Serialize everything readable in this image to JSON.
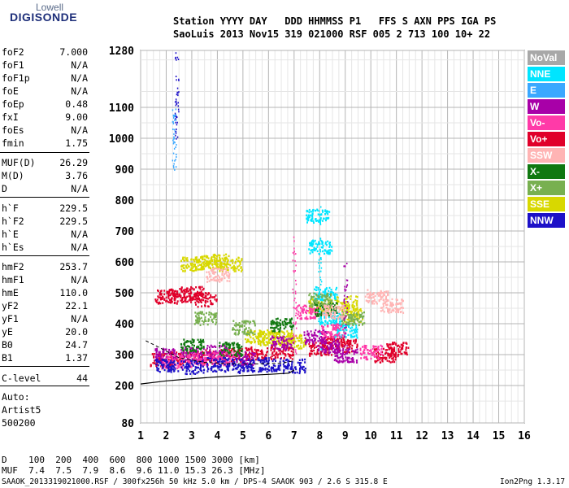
{
  "logo": {
    "line1": "Lowell",
    "line2": "DIGISONDE"
  },
  "header": {
    "line1": "Station YYYY DAY   DDD HHMMSS P1   FFS S AXN PPS IGA PS",
    "line2": "SaoLuis 2013 Nov15 319 021000 RSF 005 2 713 100 10+ 22"
  },
  "params": [
    {
      "k": "foF2",
      "v": "7.000"
    },
    {
      "k": "foF1",
      "v": "N/A"
    },
    {
      "k": "foF1p",
      "v": "N/A"
    },
    {
      "k": "foE",
      "v": "N/A"
    },
    {
      "k": "foEp",
      "v": "0.48"
    },
    {
      "k": "fxI",
      "v": "9.00"
    },
    {
      "k": "foEs",
      "v": "N/A"
    },
    {
      "k": "fmin",
      "v": "1.75"
    },
    {
      "k": "MUF(D)",
      "v": "26.29"
    },
    {
      "k": "M(D)",
      "v": "3.76"
    },
    {
      "k": "D",
      "v": "N/A"
    },
    {
      "k": "h`F",
      "v": "229.5"
    },
    {
      "k": "h`F2",
      "v": "229.5"
    },
    {
      "k": "h`E",
      "v": "N/A"
    },
    {
      "k": "h`Es",
      "v": "N/A"
    },
    {
      "k": "hmF2",
      "v": "253.7"
    },
    {
      "k": "hmF1",
      "v": "N/A"
    },
    {
      "k": "hmE",
      "v": "110.0"
    },
    {
      "k": "yF2",
      "v": "22.1"
    },
    {
      "k": "yF1",
      "v": "N/A"
    },
    {
      "k": "yE",
      "v": "20.0"
    },
    {
      "k": "B0",
      "v": "24.7"
    },
    {
      "k": "B1",
      "v": "1.37"
    },
    {
      "k": "C-level",
      "v": "44"
    }
  ],
  "auto": {
    "l1": "Auto:",
    "l2": "Artist5",
    "l3": "500200"
  },
  "legend": [
    {
      "label": "NoVal",
      "color": "#a8a8a8"
    },
    {
      "label": "NNE",
      "color": "#00e5ff"
    },
    {
      "label": "E",
      "color": "#3aa8ff"
    },
    {
      "label": "W",
      "color": "#a800a8"
    },
    {
      "label": "Vo-",
      "color": "#ff3aa8"
    },
    {
      "label": "Vo+",
      "color": "#e0002a"
    },
    {
      "label": "SSW",
      "color": "#ffb4b4"
    },
    {
      "label": "X-",
      "color": "#107810"
    },
    {
      "label": "X+",
      "color": "#78b050"
    },
    {
      "label": "SSE",
      "color": "#d8d800"
    },
    {
      "label": "NNW",
      "color": "#1c10c8"
    }
  ],
  "chart_data": {
    "type": "scatter",
    "xlabel": "",
    "ylabel": "",
    "xlim": [
      1,
      16
    ],
    "ylim_note": "height axis, piecewise scale",
    "x_ticks": [
      "1",
      "2",
      "3",
      "4",
      "5",
      "6",
      "7",
      "8",
      "9",
      "10",
      "11",
      "12",
      "13",
      "14",
      "15",
      "16"
    ],
    "y_ticks": [
      "80",
      "200",
      "300",
      "400",
      "500",
      "600",
      "700",
      "800",
      "900",
      "1000",
      "1100",
      "1280"
    ],
    "grid": true,
    "series": [
      {
        "name": "SSE",
        "values": [
          [
            3.0,
            595
          ],
          [
            3.5,
            600
          ],
          [
            4.0,
            605
          ],
          [
            4.5,
            595
          ],
          [
            5.5,
            360
          ],
          [
            6.0,
            355
          ],
          [
            6.5,
            360
          ],
          [
            7.0,
            345
          ],
          [
            8.0,
            460
          ],
          [
            9.0,
            470
          ],
          [
            9.2,
            430
          ]
        ]
      },
      {
        "name": "Vo+",
        "values": [
          [
            2.0,
            490
          ],
          [
            2.5,
            495
          ],
          [
            3.0,
            500
          ],
          [
            3.5,
            480
          ],
          [
            1.8,
            285
          ],
          [
            2.5,
            290
          ],
          [
            3.5,
            295
          ],
          [
            4.5,
            300
          ],
          [
            5.5,
            305
          ],
          [
            6.5,
            310
          ],
          [
            8.0,
            320
          ],
          [
            8.5,
            340
          ],
          [
            9.0,
            330
          ],
          [
            10.5,
            300
          ],
          [
            11.0,
            320
          ]
        ]
      },
      {
        "name": "W",
        "values": [
          [
            2.0,
            300
          ],
          [
            3.0,
            305
          ],
          [
            4.0,
            310
          ],
          [
            5.0,
            290
          ],
          [
            6.5,
            340
          ],
          [
            7.8,
            360
          ],
          [
            8.3,
            330
          ],
          [
            9.0,
            300
          ]
        ]
      },
      {
        "name": "NNE",
        "values": [
          [
            7.9,
            750
          ],
          [
            8.0,
            650
          ],
          [
            8.2,
            500
          ],
          [
            8.4,
            420
          ],
          [
            9.0,
            380
          ]
        ]
      },
      {
        "name": "Vo-",
        "values": [
          [
            2.2,
            280
          ],
          [
            3.2,
            285
          ],
          [
            4.2,
            290
          ],
          [
            7.5,
            440
          ],
          [
            8.5,
            380
          ],
          [
            10.0,
            310
          ]
        ]
      },
      {
        "name": "X-",
        "values": [
          [
            3.0,
            330
          ],
          [
            4.5,
            320
          ],
          [
            6.5,
            400
          ],
          [
            8.2,
            450
          ]
        ]
      },
      {
        "name": "X+",
        "values": [
          [
            3.5,
            420
          ],
          [
            5.0,
            390
          ],
          [
            8.0,
            480
          ],
          [
            9.3,
            420
          ]
        ]
      },
      {
        "name": "SSW",
        "values": [
          [
            4.0,
            560
          ],
          [
            8.5,
            440
          ],
          [
            10.2,
            490
          ],
          [
            10.8,
            460
          ]
        ]
      },
      {
        "name": "NNW",
        "values": [
          [
            2.0,
            265
          ],
          [
            3.0,
            262
          ],
          [
            4.0,
            270
          ],
          [
            5.0,
            265
          ],
          [
            6.0,
            270
          ],
          [
            7.0,
            265
          ]
        ]
      }
    ]
  },
  "bottom": {
    "d_row": "D    100  200  400  600  800 1000 1500 3000 [km]",
    "muf_row": "MUF  7.4  7.5  7.9  8.6  9.6 11.0 15.3 26.3 [MHz]",
    "file_row": "SAAOK_2013319021000.RSF / 300fx256h 50 kHz 5.0 km / DPS-4 SAAOK 903 / 2.6 S 315.8 E",
    "version": "Ion2Png 1.3.17"
  }
}
